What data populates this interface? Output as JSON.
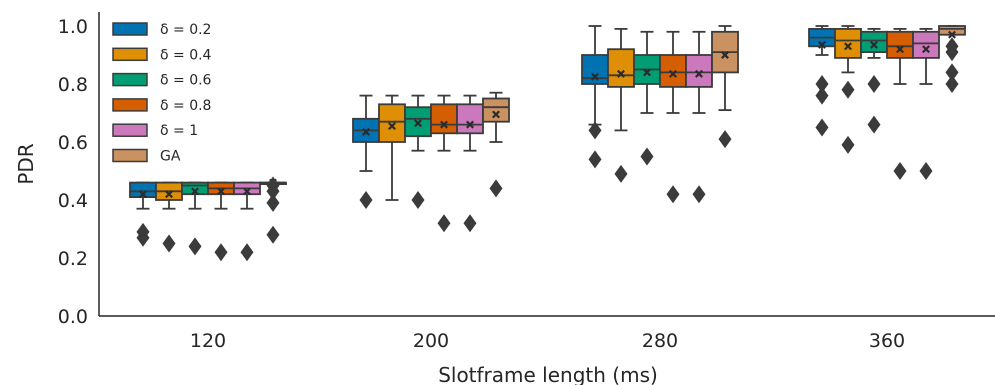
{
  "chart_data": {
    "type": "box",
    "xlabel": "Slotframe length (ms)",
    "ylabel": "PDR",
    "ylim": [
      0.0,
      1.04
    ],
    "yticks": [
      "0.0",
      "0.2",
      "0.4",
      "0.6",
      "0.8",
      "1.0"
    ],
    "categories": [
      "120",
      "200",
      "280",
      "360"
    ],
    "grid": false,
    "legend_position": "top-left",
    "mean_marker": "×",
    "series": [
      {
        "name": "δ = 0.2",
        "color": "#0173b2",
        "boxes": [
          {
            "q1": 0.41,
            "median": 0.43,
            "q3": 0.46,
            "mean": 0.42,
            "whisker_low": 0.37,
            "whisker_high": 0.46,
            "outliers": [
              0.29,
              0.27
            ]
          },
          {
            "q1": 0.6,
            "median": 0.64,
            "q3": 0.68,
            "mean": 0.635,
            "whisker_low": 0.5,
            "whisker_high": 0.76,
            "outliers": [
              0.4
            ]
          },
          {
            "q1": 0.8,
            "median": 0.82,
            "q3": 0.9,
            "mean": 0.825,
            "whisker_low": 0.66,
            "whisker_high": 1.0,
            "outliers": [
              0.64,
              0.54
            ]
          },
          {
            "q1": 0.93,
            "median": 0.96,
            "q3": 0.99,
            "mean": 0.935,
            "whisker_low": 0.9,
            "whisker_high": 1.0,
            "outliers": [
              0.8,
              0.76,
              0.65
            ]
          }
        ]
      },
      {
        "name": "δ = 0.4",
        "color": "#de8f05",
        "boxes": [
          {
            "q1": 0.4,
            "median": 0.43,
            "q3": 0.46,
            "mean": 0.42,
            "whisker_low": 0.37,
            "whisker_high": 0.46,
            "outliers": [
              0.25
            ]
          },
          {
            "q1": 0.6,
            "median": 0.67,
            "q3": 0.73,
            "mean": 0.655,
            "whisker_low": 0.4,
            "whisker_high": 0.76,
            "outliers": []
          },
          {
            "q1": 0.79,
            "median": 0.83,
            "q3": 0.92,
            "mean": 0.835,
            "whisker_low": 0.64,
            "whisker_high": 0.99,
            "outliers": [
              0.49
            ]
          },
          {
            "q1": 0.89,
            "median": 0.95,
            "q3": 0.99,
            "mean": 0.93,
            "whisker_low": 0.84,
            "whisker_high": 1.0,
            "outliers": [
              0.78,
              0.59
            ]
          }
        ]
      },
      {
        "name": "δ = 0.6",
        "color": "#029e73",
        "boxes": [
          {
            "q1": 0.42,
            "median": 0.45,
            "q3": 0.46,
            "mean": 0.43,
            "whisker_low": 0.37,
            "whisker_high": 0.46,
            "outliers": [
              0.24
            ]
          },
          {
            "q1": 0.62,
            "median": 0.68,
            "q3": 0.72,
            "mean": 0.665,
            "whisker_low": 0.57,
            "whisker_high": 0.76,
            "outliers": [
              0.4
            ]
          },
          {
            "q1": 0.8,
            "median": 0.85,
            "q3": 0.9,
            "mean": 0.84,
            "whisker_low": 0.7,
            "whisker_high": 0.98,
            "outliers": [
              0.55
            ]
          },
          {
            "q1": 0.91,
            "median": 0.95,
            "q3": 0.98,
            "mean": 0.935,
            "whisker_low": 0.89,
            "whisker_high": 0.99,
            "outliers": [
              0.8,
              0.66
            ]
          }
        ]
      },
      {
        "name": "δ = 0.8",
        "color": "#d55e00",
        "boxes": [
          {
            "q1": 0.42,
            "median": 0.44,
            "q3": 0.46,
            "mean": 0.43,
            "whisker_low": 0.37,
            "whisker_high": 0.46,
            "outliers": [
              0.22
            ]
          },
          {
            "q1": 0.63,
            "median": 0.66,
            "q3": 0.73,
            "mean": 0.66,
            "whisker_low": 0.57,
            "whisker_high": 0.76,
            "outliers": [
              0.32
            ]
          },
          {
            "q1": 0.79,
            "median": 0.84,
            "q3": 0.9,
            "mean": 0.835,
            "whisker_low": 0.7,
            "whisker_high": 0.98,
            "outliers": [
              0.42
            ]
          },
          {
            "q1": 0.89,
            "median": 0.93,
            "q3": 0.98,
            "mean": 0.92,
            "whisker_low": 0.8,
            "whisker_high": 0.99,
            "outliers": [
              0.5
            ]
          }
        ]
      },
      {
        "name": "δ = 1",
        "color": "#cc78bc",
        "boxes": [
          {
            "q1": 0.42,
            "median": 0.44,
            "q3": 0.46,
            "mean": 0.43,
            "whisker_low": 0.37,
            "whisker_high": 0.46,
            "outliers": [
              0.22
            ]
          },
          {
            "q1": 0.63,
            "median": 0.66,
            "q3": 0.73,
            "mean": 0.66,
            "whisker_low": 0.57,
            "whisker_high": 0.76,
            "outliers": [
              0.32
            ]
          },
          {
            "q1": 0.79,
            "median": 0.84,
            "q3": 0.9,
            "mean": 0.835,
            "whisker_low": 0.7,
            "whisker_high": 0.98,
            "outliers": [
              0.42
            ]
          },
          {
            "q1": 0.89,
            "median": 0.94,
            "q3": 0.98,
            "mean": 0.92,
            "whisker_low": 0.8,
            "whisker_high": 0.99,
            "outliers": [
              0.5
            ]
          }
        ]
      },
      {
        "name": "GA",
        "color": "#ca9161",
        "boxes": [
          {
            "q1": 0.46,
            "median": 0.46,
            "q3": 0.46,
            "mean": 0.46,
            "whisker_low": 0.46,
            "whisker_high": 0.46,
            "outliers": [
              0.45,
              0.43,
              0.39,
              0.28
            ]
          },
          {
            "q1": 0.67,
            "median": 0.72,
            "q3": 0.75,
            "mean": 0.695,
            "whisker_low": 0.6,
            "whisker_high": 0.77,
            "outliers": [
              0.44
            ]
          },
          {
            "q1": 0.84,
            "median": 0.91,
            "q3": 0.98,
            "mean": 0.9,
            "whisker_low": 0.71,
            "whisker_high": 1.0,
            "outliers": [
              0.61
            ]
          },
          {
            "q1": 0.97,
            "median": 0.99,
            "q3": 1.0,
            "mean": 0.97,
            "whisker_low": 0.97,
            "whisker_high": 1.0,
            "outliers": [
              0.93,
              0.91,
              0.84,
              0.8
            ]
          }
        ]
      }
    ]
  }
}
